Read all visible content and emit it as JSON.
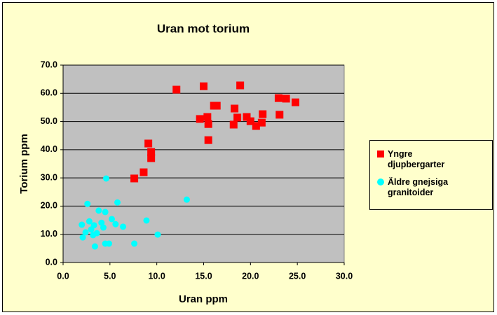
{
  "chart_data": {
    "type": "scatter",
    "title": "Uran mot torium",
    "x_label": "Uran ppm",
    "y_label": "Torium ppm",
    "xlim": [
      0,
      30
    ],
    "ylim": [
      0,
      70
    ],
    "xticks": [
      {
        "value": 0,
        "label": "0.0"
      },
      {
        "value": 5,
        "label": "5.0"
      },
      {
        "value": 10,
        "label": "10.0"
      },
      {
        "value": 15,
        "label": "15.0"
      },
      {
        "value": 20,
        "label": "20.0"
      },
      {
        "value": 25,
        "label": "25.0"
      },
      {
        "value": 30,
        "label": "30.0"
      }
    ],
    "yticks": [
      {
        "value": 0,
        "label": "0.0"
      },
      {
        "value": 10,
        "label": "10.0"
      },
      {
        "value": 20,
        "label": "20.0"
      },
      {
        "value": 30,
        "label": "30.0"
      },
      {
        "value": 40,
        "label": "40.0"
      },
      {
        "value": 50,
        "label": "50.0"
      },
      {
        "value": 60,
        "label": "60.0"
      },
      {
        "value": 70,
        "label": "70.0"
      }
    ],
    "grid": true,
    "legend": "right",
    "series": [
      {
        "name": "Yngre djupbergarter",
        "color": "#ff0000",
        "marker": "square",
        "x": [
          7.6,
          8.6,
          9.1,
          9.4,
          9.4,
          12.1,
          15.0,
          14.6,
          15.4,
          15.5,
          15.5,
          16.1,
          16.4,
          18.3,
          18.2,
          18.9,
          18.6,
          19.6,
          20.0,
          20.6,
          21.3,
          21.2,
          23.0,
          23.8,
          23.1,
          24.8
        ],
        "values": [
          29.8,
          32.0,
          42.2,
          39.2,
          37.0,
          61.3,
          62.5,
          50.9,
          51.6,
          49.1,
          43.4,
          55.6,
          55.6,
          54.6,
          48.9,
          62.8,
          51.4,
          51.6,
          50.1,
          48.4,
          52.6,
          49.6,
          58.3,
          58.1,
          52.4,
          56.8
        ]
      },
      {
        "name": "Äldre gnejsiga granitoider",
        "color": "#00ffff",
        "marker": "circle",
        "x": [
          4.6,
          2.6,
          5.8,
          13.2,
          4.5,
          3.8,
          8.9,
          2.0,
          2.8,
          3.3,
          4.1,
          5.2,
          5.6,
          6.4,
          4.3,
          3.0,
          2.4,
          3.6,
          2.1,
          3.2,
          10.1,
          4.5,
          4.9,
          7.6,
          3.4
        ],
        "values": [
          29.8,
          20.8,
          21.3,
          22.3,
          17.9,
          18.4,
          14.9,
          13.4,
          14.6,
          13.2,
          14.1,
          15.4,
          13.6,
          12.7,
          12.4,
          11.7,
          10.7,
          10.4,
          8.9,
          9.7,
          9.9,
          6.7,
          6.7,
          6.7,
          5.7
        ]
      }
    ]
  }
}
